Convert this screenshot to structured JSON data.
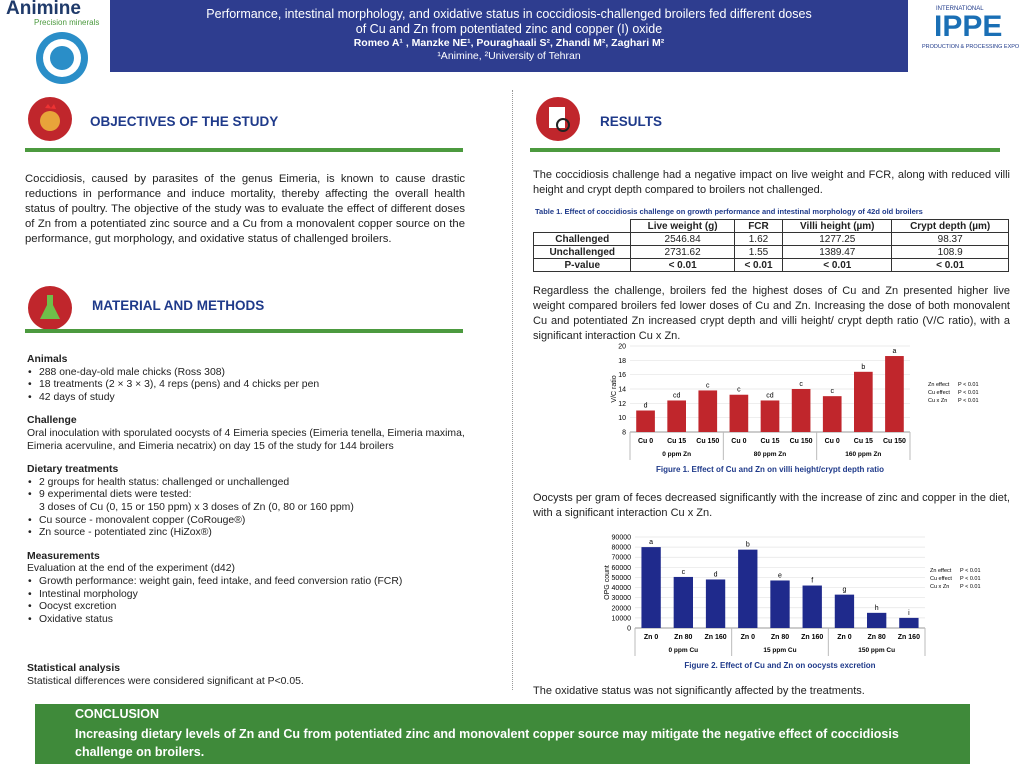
{
  "header": {
    "logo_left": "Animine",
    "logo_left_sub": "Precision minerals",
    "title": "Performance, intestinal morphology, and oxidative status in coccidiosis-challenged broilers fed different doses of Cu and Zn from potentiated zinc and copper (I) oxide",
    "authors": "Romeo A¹ , Manzke NE¹, Pouraghaali S², Zhandi M², Zaghari M²",
    "affiliations": "¹Animine, ²University of Tehran",
    "logo_right_top": "INTERNATIONAL",
    "logo_right": "IPPE",
    "logo_right_sub": "PRODUCTION & PROCESSING EXPO"
  },
  "objectives": {
    "heading": "OBJECTIVES OF THE STUDY",
    "text": "Coccidiosis, caused by parasites of the genus Eimeria, is known to cause drastic reductions in performance and induce mortality, thereby affecting the overall health status of poultry. The objective of the study was to evaluate the effect of different doses of Zn from a potentiated zinc source and a Cu from a monovalent copper source on the performance, gut morphology, and oxidative status of challenged broilers."
  },
  "methods": {
    "heading": "MATERIAL AND METHODS",
    "sections": [
      {
        "title": "Animals",
        "items": [
          {
            "style": "bullet",
            "text": "288 one-day-old male chicks (Ross 308)"
          },
          {
            "style": "bullet",
            "text": "18 treatments (2 × 3 × 3), 4 reps (pens) and 4 chicks per pen"
          },
          {
            "style": "bullet",
            "text": "42 days of study"
          }
        ]
      },
      {
        "title": "Challenge",
        "items": [
          {
            "style": "plain",
            "text": "Oral inoculation with sporulated oocysts of 4 Eimeria species (Eimeria tenella, Eimeria maxima, Eimeria acervuline, and Eimeria necatrix) on day 15 of the study for 144 broilers"
          }
        ]
      },
      {
        "title": "Dietary treatments",
        "items": [
          {
            "style": "bullet",
            "text": "2 groups for health status: challenged or unchallenged"
          },
          {
            "style": "bullet",
            "text": "9 experimental diets were tested:"
          },
          {
            "style": "indent",
            "text": "3 doses of Cu (0, 15 or 150 ppm) x 3 doses of Zn (0, 80 or 160 ppm)"
          },
          {
            "style": "bullet",
            "text": "Cu source - monovalent copper (CoRouge®)"
          },
          {
            "style": "bullet",
            "text": "Zn source - potentiated zinc (HiZox®)"
          }
        ]
      },
      {
        "title": "Measurements",
        "items": [
          {
            "style": "plain",
            "text": "Evaluation at the end of the experiment (d42)"
          },
          {
            "style": "bullet",
            "text": "Growth performance: weight gain, feed intake, and feed conversion ratio (FCR)"
          },
          {
            "style": "bullet",
            "text": "Intestinal morphology"
          },
          {
            "style": "bullet",
            "text": "Oocyst excretion"
          },
          {
            "style": "bullet",
            "text": "Oxidative status"
          }
        ]
      }
    ],
    "stats_title": "Statistical analysis",
    "stats_text": "Statistical differences were considered significant at P<0.05."
  },
  "results": {
    "heading": "RESULTS",
    "text1": "The coccidiosis challenge had a negative impact on live weight and FCR, along with reduced villi height and crypt depth compared to broilers not challenged.",
    "table": {
      "caption": "Table 1. Effect of coccidiosis challenge on growth performance and intestinal morphology of 42d old broilers",
      "columns": [
        "Live weight (g)",
        "FCR",
        "Villi height (µm)",
        "Crypt depth (µm)"
      ],
      "rows": [
        [
          "Challenged",
          "2546.84",
          "1.62",
          "1277.25",
          "98.37"
        ],
        [
          "Unchallenged",
          "2731.62",
          "1.55",
          "1389.47",
          "108.9"
        ],
        [
          "P-value",
          "< 0.01",
          "< 0.01",
          "< 0.01",
          "< 0.01"
        ]
      ]
    },
    "text2": "Regardless the challenge, broilers fed the highest doses of Cu and Zn presented higher live weight compared broilers fed lower doses of Cu and Zn. Increasing the dose of both monovalent Cu and potentiated Zn increased crypt depth and villi height/ crypt depth ratio (V/C ratio), with a significant interaction Cu x Zn.",
    "figure1": {
      "type": "bar",
      "caption": "Figure 1. Effect of Cu and Zn on villi height/crypt depth ratio",
      "y_label": "V/C ratio",
      "categories": [
        "Cu 0",
        "Cu 15",
        "Cu 150",
        "Cu 0",
        "Cu 15",
        "Cu 150",
        "Cu 0",
        "Cu 15",
        "Cu 150"
      ],
      "groups": [
        "0 ppm Zn",
        "80 ppm Zn",
        "160 ppm Zn"
      ],
      "values": [
        11.0,
        12.4,
        13.8,
        13.2,
        12.4,
        14.0,
        13.0,
        16.4,
        18.6
      ],
      "letters": [
        "d",
        "cd",
        "c",
        "c",
        "cd",
        "c",
        "c",
        "b",
        "a"
      ],
      "color": "#c0262c",
      "ylim": [
        8,
        20
      ],
      "yticks": [
        8,
        10,
        12,
        14,
        16,
        18,
        20
      ],
      "stats": [
        {
          "label": "Zn effect",
          "p": "P < 0.01"
        },
        {
          "label": "Cu effect",
          "p": "P < 0.01"
        },
        {
          "label": "Cu x Zn",
          "p": "P < 0.01"
        }
      ]
    },
    "text3": "Oocysts per gram of feces decreased significantly with the increase of zinc and copper in the diet, with a significant interaction Cu x Zn.",
    "figure2": {
      "type": "bar",
      "caption": "Figure 2. Effect of Cu and Zn on oocysts excretion",
      "y_label": "OPG count",
      "categories": [
        "Zn 0",
        "Zn 80",
        "Zn 160",
        "Zn 0",
        "Zn 80",
        "Zn 160",
        "Zn 0",
        "Zn 80",
        "Zn 160"
      ],
      "groups": [
        "0 ppm Cu",
        "15 ppm Cu",
        "150 ppm Cu"
      ],
      "values": [
        80000,
        50500,
        48000,
        77500,
        47000,
        42000,
        33000,
        15000,
        10000
      ],
      "letters": [
        "a",
        "c",
        "d",
        "b",
        "e",
        "f",
        "g",
        "h",
        "i"
      ],
      "color": "#1f2a8c",
      "ylim": [
        0,
        90000
      ],
      "yticks": [
        0,
        10000,
        20000,
        30000,
        40000,
        50000,
        60000,
        70000,
        80000,
        90000
      ],
      "stats": [
        {
          "label": "Zn effect",
          "p": "P < 0.01"
        },
        {
          "label": "Cu effect",
          "p": "P < 0.01"
        },
        {
          "label": "Cu x Zn",
          "p": "P < 0.01"
        }
      ]
    },
    "text4": "The oxidative status was not significantly affected by the treatments."
  },
  "conclusion": {
    "heading": "CONCLUSION",
    "text": "Increasing dietary levels of Zn and Cu from potentiated zinc and monovalent copper source may mitigate the negative effect of coccidiosis challenge on broilers."
  }
}
